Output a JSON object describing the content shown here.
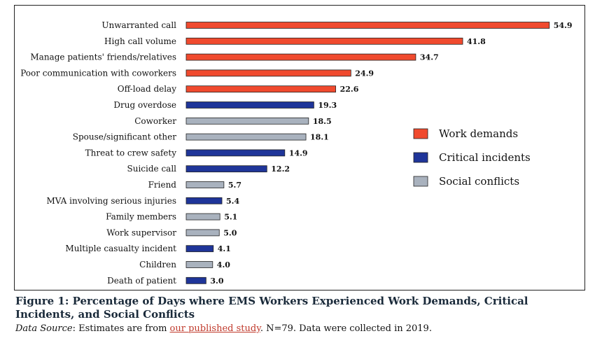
{
  "chart_data": {
    "type": "bar",
    "orientation": "horizontal",
    "categories": [
      "Unwarranted call",
      "High call volume",
      "Manage patients' friends/relatives",
      "Poor communication with coworkers",
      "Off-load delay",
      "Drug overdose",
      "Coworker",
      "Spouse/significant other",
      "Threat to crew safety",
      "Suicide call",
      "Friend",
      "MVA involving serious injuries",
      "Family members",
      "Work supervisor",
      "Multiple casualty incident",
      "Children",
      "Death of patient"
    ],
    "values": [
      54.9,
      41.8,
      34.7,
      24.9,
      22.6,
      19.3,
      18.5,
      18.1,
      14.9,
      12.2,
      5.7,
      5.4,
      5.1,
      5.0,
      4.1,
      4.0,
      3.0
    ],
    "value_labels": [
      "54.9",
      "41.8",
      "34.7",
      "24.9",
      "22.6",
      "19.3",
      "18.5",
      "18.1",
      "14.9",
      "12.2",
      "5.7",
      "5.4",
      "5.1",
      "5.0",
      "4.1",
      "4.0",
      "3.0"
    ],
    "groups": [
      0,
      0,
      0,
      0,
      0,
      1,
      2,
      2,
      1,
      1,
      2,
      1,
      2,
      2,
      1,
      2,
      1
    ],
    "series": [
      {
        "name": "Work demands",
        "color": "#f04a2e"
      },
      {
        "name": "Critical incidents",
        "color": "#1f3599"
      },
      {
        "name": "Social conflicts",
        "color": "#a9b2be"
      }
    ],
    "xlim": [
      0,
      55
    ],
    "grid": false,
    "legend_position": "right"
  },
  "caption": {
    "title": "Figure 1: Percentage of Days where EMS Workers Experienced Work Demands, Critical Incidents, and Social Conflicts",
    "source_label": "Data Source",
    "source_text_1": ": Estimates are from ",
    "source_link": "our published study",
    "source_text_2": ". N=79. Data were collected in 2019."
  }
}
